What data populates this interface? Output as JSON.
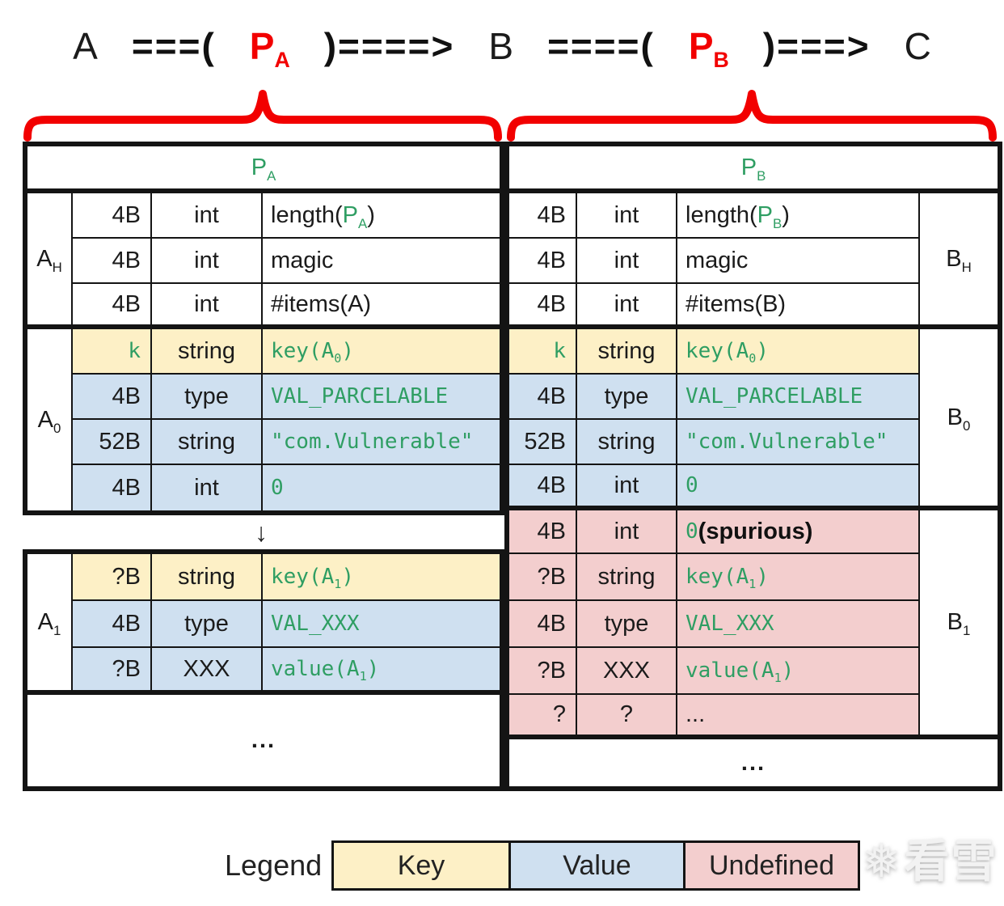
{
  "title": {
    "segments": [
      {
        "t": "A",
        "s": "k"
      },
      {
        "t": "===(",
        "s": "b"
      },
      {
        "t": "P_{A}",
        "s": "r"
      },
      {
        "t": ")====>",
        "s": "b"
      },
      {
        "t": "B",
        "s": "k"
      },
      {
        "t": "====(",
        "s": "b"
      },
      {
        "t": "P_{B}",
        "s": "r"
      },
      {
        "t": ")===>",
        "s": "b"
      },
      {
        "t": "C",
        "s": "k"
      }
    ]
  },
  "left_table": {
    "header": "P_{A}",
    "section_h": {
      "label": "A_{H}",
      "rows": [
        {
          "size": "4B",
          "type": "int",
          "desc": [
            {
              "t": "length(",
              "s": "k"
            },
            {
              "t": "P_{A}",
              "s": "g"
            },
            {
              "t": ")",
              "s": "k"
            }
          ]
        },
        {
          "size": "4B",
          "type": "int",
          "desc": [
            {
              "t": "magic",
              "s": "k"
            }
          ]
        },
        {
          "size": "4B",
          "type": "int",
          "desc": [
            {
              "t": "#items(A)",
              "s": "k"
            }
          ]
        }
      ]
    },
    "section_0": {
      "label": "A_{0}",
      "rows": [
        {
          "size": "k",
          "sizeStyle": "m",
          "type": "string",
          "desc": [
            {
              "t": "key(A_{0})",
              "s": "m"
            }
          ],
          "bg": "key"
        },
        {
          "size": "4B",
          "type": "type",
          "desc": [
            {
              "t": "VAL_PARCELABLE",
              "s": "m"
            }
          ],
          "bg": "value"
        },
        {
          "size": "52B",
          "type": "string",
          "desc": [
            {
              "t": "\"com.Vulnerable\"",
              "s": "m"
            }
          ],
          "bg": "value"
        },
        {
          "size": "4B",
          "type": "int",
          "desc": [
            {
              "t": "0",
              "s": "m"
            }
          ],
          "bg": "value"
        }
      ]
    },
    "arrow_row": "↓",
    "section_1": {
      "label": "A_{1}",
      "rows": [
        {
          "size": "?B",
          "type": "string",
          "desc": [
            {
              "t": "key(A_{1})",
              "s": "m"
            }
          ],
          "bg": "key"
        },
        {
          "size": "4B",
          "type": "type",
          "desc": [
            {
              "t": "VAL_XXX",
              "s": "m"
            }
          ],
          "bg": "value"
        },
        {
          "size": "?B",
          "type": "XXX",
          "desc": [
            {
              "t": "value(A_{1})",
              "s": "m"
            }
          ],
          "bg": "value"
        }
      ]
    },
    "ellipsis_row": "..."
  },
  "right_table": {
    "header": "P_{B}",
    "section_h": {
      "label": "B_{H}",
      "rows": [
        {
          "size": "4B",
          "type": "int",
          "desc": [
            {
              "t": "length(",
              "s": "k"
            },
            {
              "t": "P_{B}",
              "s": "g"
            },
            {
              "t": ")",
              "s": "k"
            }
          ]
        },
        {
          "size": "4B",
          "type": "int",
          "desc": [
            {
              "t": "magic",
              "s": "k"
            }
          ]
        },
        {
          "size": "4B",
          "type": "int",
          "desc": [
            {
              "t": "#items(B)",
              "s": "k"
            }
          ]
        }
      ]
    },
    "section_0": {
      "label": "B_{0}",
      "rows": [
        {
          "size": "k",
          "sizeStyle": "m",
          "type": "string",
          "desc": [
            {
              "t": "key(A_{0})",
              "s": "m"
            }
          ],
          "bg": "key"
        },
        {
          "size": "4B",
          "type": "type",
          "desc": [
            {
              "t": "VAL_PARCELABLE",
              "s": "m"
            }
          ],
          "bg": "value"
        },
        {
          "size": "52B",
          "type": "string",
          "desc": [
            {
              "t": "\"com.Vulnerable\"",
              "s": "m"
            }
          ],
          "bg": "value"
        },
        {
          "size": "4B",
          "type": "int",
          "desc": [
            {
              "t": "0",
              "s": "m"
            }
          ],
          "bg": "value"
        }
      ]
    },
    "section_1": {
      "label": "B_{1}",
      "rows": [
        {
          "size": "4B",
          "type": "int",
          "desc": [
            {
              "t": "0 ",
              "s": "m"
            },
            {
              "t": "(spurious)",
              "s": "bb"
            }
          ],
          "bg": "undef"
        },
        {
          "size": "?B",
          "type": "string",
          "desc": [
            {
              "t": "key(A_{1})",
              "s": "m"
            }
          ],
          "bg": "undef"
        },
        {
          "size": "4B",
          "type": "type",
          "desc": [
            {
              "t": "VAL_XXX",
              "s": "m"
            }
          ],
          "bg": "undef"
        },
        {
          "size": "?B",
          "type": "XXX",
          "desc": [
            {
              "t": "value(A_{1})",
              "s": "m"
            }
          ],
          "bg": "undef"
        },
        {
          "size": "?",
          "type": "?",
          "desc": [
            {
              "t": "...",
              "s": "k"
            }
          ],
          "bg": "undef"
        }
      ]
    },
    "ellipsis_row": "..."
  },
  "legend": {
    "title": "Legend",
    "items": [
      {
        "label": "Key",
        "bg": "key"
      },
      {
        "label": "Value",
        "bg": "value"
      },
      {
        "label": "Undefined",
        "bg": "undef"
      }
    ]
  },
  "watermark": {
    "snowflake": "❅",
    "text": "看雪"
  },
  "colors": {
    "key": "#fdf0c6",
    "value": "#cfe0f0",
    "undefined": "#f3cece",
    "green_text": "#2f9e63",
    "red_accent": "#f20000",
    "border_black": "#141414"
  }
}
